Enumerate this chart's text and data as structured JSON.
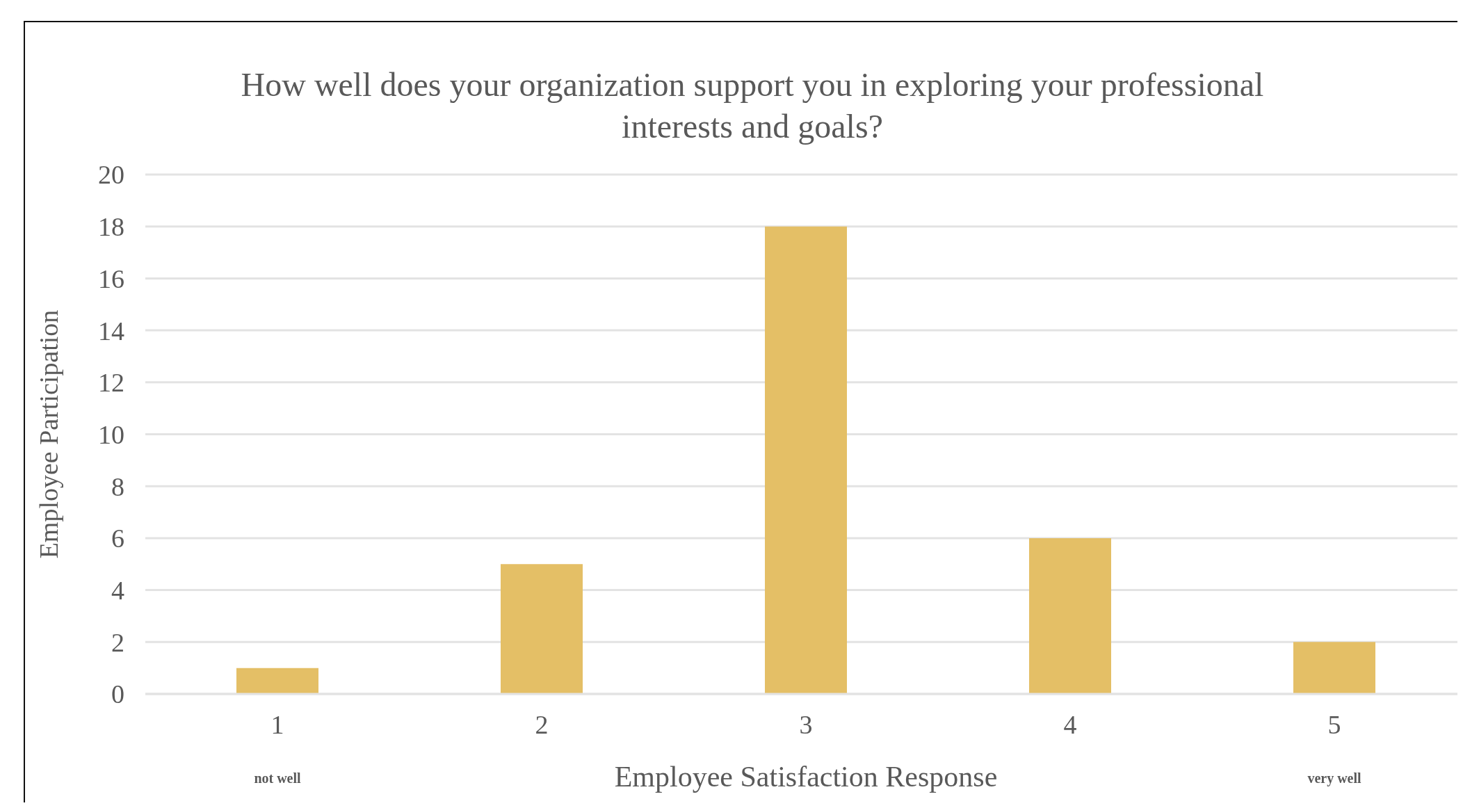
{
  "chart_data": {
    "type": "bar",
    "title": "How well does your organization support you in exploring your professional interests and goals?",
    "xlabel": "Employee Satisfaction Response",
    "ylabel": "Employee Participation",
    "categories": [
      "1",
      "2",
      "3",
      "4",
      "5"
    ],
    "values": [
      1,
      5,
      18,
      6,
      2
    ],
    "color": "#e4bf66",
    "ylim": [
      0,
      20
    ],
    "yticks": [
      0,
      2,
      4,
      6,
      8,
      10,
      12,
      14,
      16,
      18,
      20
    ],
    "grid": "y",
    "annotations": [
      "not well",
      "very well"
    ]
  }
}
